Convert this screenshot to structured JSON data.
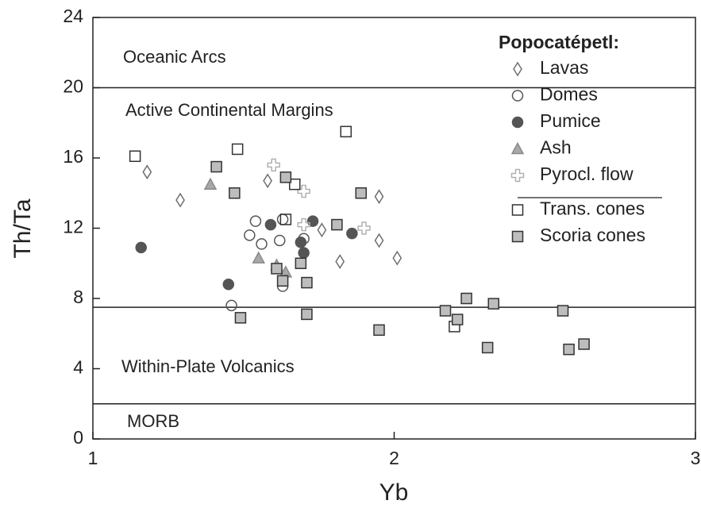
{
  "chart_data": {
    "type": "scatter",
    "x_label": "Yb",
    "y_label": "Th/Ta",
    "xlim": [
      1,
      3
    ],
    "ylim": [
      0,
      24
    ],
    "xticks": [
      1,
      2,
      3
    ],
    "yticks": [
      0,
      4,
      8,
      12,
      16,
      20,
      24
    ],
    "boundaries": [
      20,
      7.5,
      2
    ],
    "regions": [
      "Oceanic Arcs",
      "Active Continental Margins",
      "Within-Plate Volcanics",
      "MORB"
    ],
    "legend_title": "Popocatépetl:",
    "legend": "upper right",
    "series": [
      {
        "name": "Lavas",
        "marker": "diamond",
        "fill": "none",
        "stroke": "#6e6e6e",
        "x": [
          1.18,
          1.29,
          1.95,
          1.95,
          2.01,
          1.82,
          1.76,
          1.58
        ],
        "y": [
          15.2,
          13.6,
          13.8,
          11.3,
          10.3,
          10.1,
          11.9,
          14.7
        ]
      },
      {
        "name": "Domes",
        "marker": "circle",
        "fill": "none",
        "stroke": "#555555",
        "x": [
          1.54,
          1.52,
          1.56,
          1.62,
          1.63,
          1.7,
          1.63,
          1.46
        ],
        "y": [
          12.4,
          11.6,
          11.1,
          11.3,
          12.5,
          11.4,
          8.7,
          7.6
        ]
      },
      {
        "name": "Pumice",
        "marker": "circle",
        "fill": "#555555",
        "stroke": "#555555",
        "x": [
          1.16,
          1.45,
          1.59,
          1.73,
          1.69,
          1.7,
          1.86
        ],
        "y": [
          10.9,
          8.8,
          12.2,
          12.4,
          11.2,
          10.6,
          11.7
        ]
      },
      {
        "name": "Ash",
        "marker": "triangle",
        "fill": "#a8a8a8",
        "stroke": "#8a8a8a",
        "x": [
          1.39,
          1.55,
          1.61,
          1.64
        ],
        "y": [
          14.5,
          10.3,
          9.9,
          9.5
        ]
      },
      {
        "name": "Pyrocl. flow",
        "marker": "cross",
        "fill": "none",
        "stroke": "#b0b0b0",
        "x": [
          1.6,
          1.7,
          1.7,
          1.9
        ],
        "y": [
          15.6,
          14.1,
          12.2,
          12.0
        ]
      },
      {
        "name": "Trans. cones",
        "marker": "square",
        "fill": "none",
        "stroke": "#333333",
        "x": [
          1.14,
          1.48,
          1.67,
          1.64,
          1.84,
          2.2
        ],
        "y": [
          16.1,
          16.5,
          14.5,
          12.5,
          17.5,
          6.4
        ]
      },
      {
        "name": "Scoria cones",
        "marker": "square",
        "fill": "#bdbdbd",
        "stroke": "#333333",
        "x": [
          1.41,
          1.47,
          1.64,
          1.89,
          1.81,
          1.69,
          1.61,
          1.63,
          1.71,
          1.49,
          1.71,
          1.95,
          2.17,
          2.21,
          2.24,
          2.33,
          2.31,
          2.56,
          2.58,
          2.63
        ],
        "y": [
          15.5,
          14.0,
          14.9,
          14.0,
          12.2,
          10.0,
          9.7,
          9.0,
          8.9,
          6.9,
          7.1,
          6.2,
          7.3,
          6.8,
          8.0,
          7.7,
          5.2,
          7.3,
          5.1,
          5.4
        ]
      }
    ]
  }
}
